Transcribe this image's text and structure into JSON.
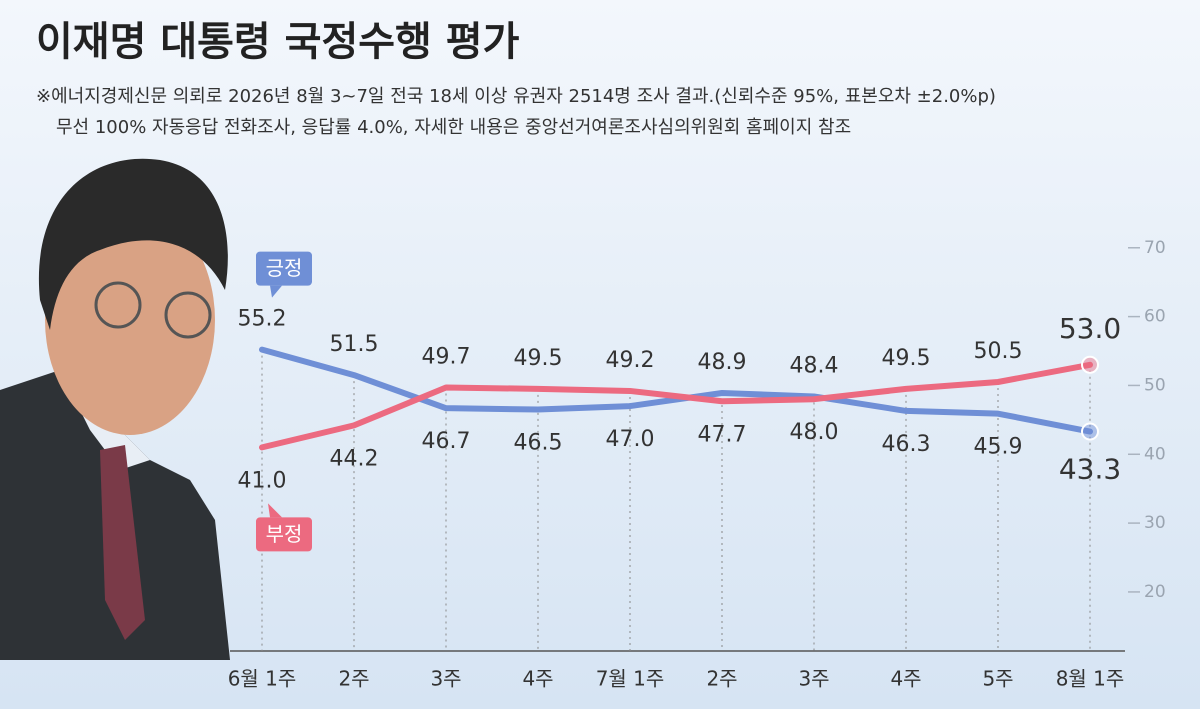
{
  "chart_data": {
    "type": "line",
    "title": "이재명 대통령 국정수행 평가",
    "subtitle": [
      "※에너지경제신문 의뢰로 2026년 8월 3~7일 전국 18세 이상 유권자 2514명 조사 결과.(신뢰수준 95%, 표본오차 ±2.0%p)",
      "무선 100% 자동응답 전화조사, 응답률 4.0%, 자세한 내용은 중앙선거여론조사심의위원회 홈페이지 참조"
    ],
    "categories": [
      "6월 1주",
      "2주",
      "3주",
      "4주",
      "7월 1주",
      "2주",
      "3주",
      "4주",
      "5주",
      "8월 1주"
    ],
    "series": [
      {
        "name": "긍정",
        "color": "#6f8fd6",
        "values": [
          55.2,
          51.5,
          46.7,
          46.5,
          47.0,
          48.9,
          48.4,
          46.3,
          45.9,
          43.3
        ],
        "value_labels": [
          "55.2",
          "51.5",
          "46.7",
          "46.5",
          "47.0",
          "48.9",
          "48.4",
          "46.3",
          "45.9",
          "43.3"
        ]
      },
      {
        "name": "부정",
        "color": "#ec6a80",
        "values": [
          41.0,
          44.2,
          49.7,
          49.5,
          49.2,
          47.7,
          48.0,
          49.5,
          50.5,
          53.0
        ],
        "value_labels": [
          "41.0",
          "44.2",
          "49.7",
          "49.5",
          "49.2",
          "47.7",
          "48.0",
          "49.5",
          "50.5",
          "53.0"
        ]
      }
    ],
    "ylim": [
      12,
      72
    ],
    "yticks": [
      20,
      30,
      40,
      50,
      60,
      70
    ],
    "axis_side": "right"
  }
}
